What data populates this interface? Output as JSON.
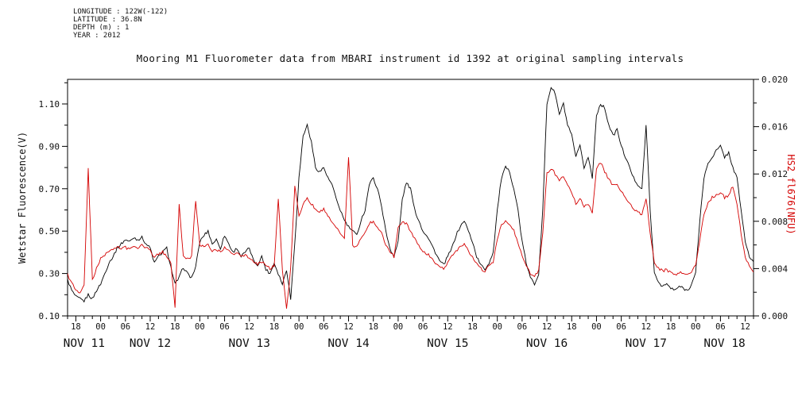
{
  "meta": {
    "line1": "LONGITUDE : 122W(-122)",
    "line2": "LATITUDE : 36.8N",
    "line3": "DEPTH (m) : 1",
    "line4": "YEAR : 2012"
  },
  "title": "Mooring M1 Fluorometer data from MBARI instrument id 1392 at original sampling intervals",
  "chart_data": {
    "type": "line",
    "title": "Mooring M1 Fluorometer data from MBARI instrument id 1392 at original sampling intervals",
    "xlabel": "",
    "x_axis": {
      "start": "2012-11-11 16:00",
      "end": "2012-11-18 14:00",
      "step_hours": 1,
      "major_tick_first_t": 2,
      "major_tick_step": 6,
      "minor_tick_step": 2,
      "first_day_midnight_t": -16,
      "tick_labels": [
        "18",
        "00",
        "06",
        "12",
        "18",
        "00",
        "06",
        "12",
        "18",
        "00",
        "06",
        "12",
        "18",
        "00",
        "06",
        "12",
        "18",
        "00",
        "06",
        "12",
        "18",
        "00",
        "06",
        "12",
        "18",
        "00",
        "06",
        "12"
      ],
      "date_labels": [
        "NOV 11",
        "NOV 12",
        "NOV 13",
        "NOV 14",
        "NOV 15",
        "NOV 16",
        "NOV 17",
        "NOV 18"
      ]
    },
    "left_axis": {
      "label": "Wetstar Fluorescence(V)",
      "tick_labels": [
        "0.10",
        "0.30",
        "0.50",
        "0.70",
        "0.90",
        "1.10"
      ],
      "minor_tick_first": 0.2,
      "minor_tick_step": 0.2,
      "range": [
        0.1,
        1.216
      ],
      "color": "#000000"
    },
    "right_axis": {
      "label": "HS2 fl676(NFU)",
      "tick_labels": [
        "0.000",
        "0.004",
        "0.008",
        "0.012",
        "0.016",
        "0.020"
      ],
      "minor_tick_first": 0.002,
      "minor_tick_step": 0.004,
      "range": [
        0,
        0.02
      ],
      "color": "#d40000"
    },
    "series": [
      {
        "name": "Wetstar Fluorescence",
        "slug": "wetstar-fluorescence",
        "axis": "left",
        "color": "#000000",
        "values": [
          0.27,
          0.22,
          0.19,
          0.18,
          0.17,
          0.2,
          0.18,
          0.22,
          0.25,
          0.3,
          0.35,
          0.38,
          0.42,
          0.44,
          0.46,
          0.45,
          0.47,
          0.46,
          0.47,
          0.44,
          0.42,
          0.35,
          0.38,
          0.4,
          0.42,
          0.33,
          0.25,
          0.28,
          0.33,
          0.3,
          0.28,
          0.33,
          0.45,
          0.48,
          0.5,
          0.44,
          0.46,
          0.42,
          0.48,
          0.44,
          0.4,
          0.42,
          0.38,
          0.4,
          0.42,
          0.36,
          0.34,
          0.38,
          0.32,
          0.3,
          0.35,
          0.3,
          0.25,
          0.32,
          0.18,
          0.45,
          0.75,
          0.95,
          1.0,
          0.92,
          0.8,
          0.78,
          0.8,
          0.75,
          0.72,
          0.65,
          0.6,
          0.55,
          0.52,
          0.5,
          0.48,
          0.55,
          0.6,
          0.72,
          0.75,
          0.7,
          0.62,
          0.5,
          0.42,
          0.38,
          0.45,
          0.65,
          0.73,
          0.7,
          0.6,
          0.55,
          0.5,
          0.48,
          0.44,
          0.4,
          0.36,
          0.34,
          0.38,
          0.42,
          0.48,
          0.52,
          0.55,
          0.5,
          0.45,
          0.38,
          0.34,
          0.32,
          0.35,
          0.4,
          0.6,
          0.75,
          0.8,
          0.78,
          0.7,
          0.6,
          0.45,
          0.35,
          0.28,
          0.25,
          0.3,
          0.6,
          1.1,
          1.18,
          1.15,
          1.05,
          1.1,
          1.0,
          0.95,
          0.85,
          0.9,
          0.8,
          0.85,
          0.75,
          1.05,
          1.1,
          1.08,
          1.0,
          0.95,
          0.98,
          0.9,
          0.85,
          0.8,
          0.75,
          0.72,
          0.7,
          1.0,
          0.6,
          0.3,
          0.26,
          0.24,
          0.25,
          0.23,
          0.22,
          0.24,
          0.23,
          0.22,
          0.25,
          0.3,
          0.55,
          0.75,
          0.82,
          0.85,
          0.88,
          0.9,
          0.85,
          0.87,
          0.8,
          0.75,
          0.6,
          0.45,
          0.38,
          0.35
        ]
      },
      {
        "name": "HS2 fl676",
        "slug": "hs2-fl676",
        "axis": "right",
        "color": "#d40000",
        "values": [
          0.0035,
          0.0028,
          0.0022,
          0.002,
          0.0025,
          0.0125,
          0.003,
          0.004,
          0.0048,
          0.0052,
          0.0055,
          0.0056,
          0.0058,
          0.0057,
          0.0058,
          0.0056,
          0.0059,
          0.0057,
          0.006,
          0.0058,
          0.0055,
          0.005,
          0.0052,
          0.0054,
          0.005,
          0.0045,
          0.0008,
          0.0095,
          0.005,
          0.0048,
          0.005,
          0.0098,
          0.006,
          0.0058,
          0.006,
          0.0055,
          0.0056,
          0.0054,
          0.0058,
          0.0055,
          0.0052,
          0.0054,
          0.005,
          0.0052,
          0.0048,
          0.0046,
          0.0044,
          0.0046,
          0.0042,
          0.004,
          0.0042,
          0.01,
          0.0038,
          0.0005,
          0.004,
          0.011,
          0.0085,
          0.0095,
          0.01,
          0.0095,
          0.009,
          0.0088,
          0.009,
          0.0085,
          0.008,
          0.0075,
          0.007,
          0.0065,
          0.0135,
          0.006,
          0.0058,
          0.0065,
          0.007,
          0.0078,
          0.008,
          0.0075,
          0.007,
          0.006,
          0.0055,
          0.005,
          0.0075,
          0.008,
          0.0078,
          0.0072,
          0.0065,
          0.006,
          0.0055,
          0.0052,
          0.005,
          0.0045,
          0.0042,
          0.004,
          0.0045,
          0.005,
          0.0055,
          0.0058,
          0.006,
          0.0055,
          0.005,
          0.0045,
          0.004,
          0.0038,
          0.0042,
          0.0045,
          0.0065,
          0.0078,
          0.008,
          0.0078,
          0.0072,
          0.0062,
          0.005,
          0.0042,
          0.0036,
          0.0033,
          0.0038,
          0.007,
          0.012,
          0.0125,
          0.012,
          0.0115,
          0.0118,
          0.011,
          0.0105,
          0.0095,
          0.01,
          0.0092,
          0.0095,
          0.0088,
          0.0125,
          0.013,
          0.0122,
          0.0115,
          0.011,
          0.0112,
          0.0105,
          0.01,
          0.0095,
          0.009,
          0.0088,
          0.0085,
          0.01,
          0.007,
          0.0045,
          0.004,
          0.0038,
          0.0039,
          0.0036,
          0.0035,
          0.0037,
          0.0036,
          0.0035,
          0.0038,
          0.0042,
          0.0065,
          0.0085,
          0.0095,
          0.01,
          0.0102,
          0.0105,
          0.01,
          0.0102,
          0.011,
          0.0095,
          0.007,
          0.005,
          0.0042,
          0.0038
        ]
      }
    ]
  }
}
